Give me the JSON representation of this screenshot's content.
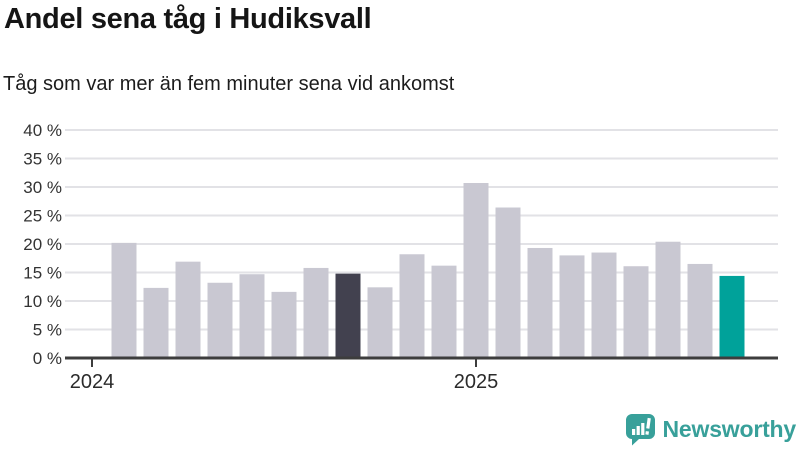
{
  "header": {
    "title": "Andel sena tåg i Hudiksvall",
    "subtitle": "Tåg som var mer än fem minuter sena vid ankomst"
  },
  "footer": {
    "brand": "Newsworthy"
  },
  "chart_data": {
    "type": "bar",
    "title": "Andel sena tåg i Hudiksvall",
    "subtitle": "Tåg som var mer än fem minuter sena vid ankomst",
    "unit": "%",
    "ylim": [
      0,
      40
    ],
    "ytick_step": 5,
    "grid": true,
    "yticks": [
      {
        "value": 0,
        "label": "0 %"
      },
      {
        "value": 5,
        "label": "5 %"
      },
      {
        "value": 10,
        "label": "10 %"
      },
      {
        "value": 15,
        "label": "15 %"
      },
      {
        "value": 20,
        "label": "20 %"
      },
      {
        "value": 25,
        "label": "25 %"
      },
      {
        "value": 30,
        "label": "30 %"
      },
      {
        "value": 35,
        "label": "35 %"
      },
      {
        "value": 40,
        "label": "40 %"
      }
    ],
    "xticks": [
      {
        "month_index": 0,
        "label": "2024"
      },
      {
        "month_index": 12,
        "label": "2025"
      }
    ],
    "bars": [
      {
        "month_index": 1,
        "value": 20.2,
        "role": "default"
      },
      {
        "month_index": 2,
        "value": 12.3,
        "role": "default"
      },
      {
        "month_index": 3,
        "value": 16.9,
        "role": "default"
      },
      {
        "month_index": 4,
        "value": 13.2,
        "role": "default"
      },
      {
        "month_index": 5,
        "value": 14.7,
        "role": "default"
      },
      {
        "month_index": 6,
        "value": 11.6,
        "role": "default"
      },
      {
        "month_index": 7,
        "value": 15.8,
        "role": "default"
      },
      {
        "month_index": 8,
        "value": 14.8,
        "role": "dark"
      },
      {
        "month_index": 9,
        "value": 12.4,
        "role": "default"
      },
      {
        "month_index": 10,
        "value": 18.2,
        "role": "default"
      },
      {
        "month_index": 11,
        "value": 16.2,
        "role": "default"
      },
      {
        "month_index": 12,
        "value": 30.7,
        "role": "default"
      },
      {
        "month_index": 13,
        "value": 26.4,
        "role": "default"
      },
      {
        "month_index": 14,
        "value": 19.3,
        "role": "default"
      },
      {
        "month_index": 15,
        "value": 18.0,
        "role": "default"
      },
      {
        "month_index": 16,
        "value": 18.5,
        "role": "default"
      },
      {
        "month_index": 17,
        "value": 16.1,
        "role": "default"
      },
      {
        "month_index": 18,
        "value": 20.4,
        "role": "default"
      },
      {
        "month_index": 19,
        "value": 16.5,
        "role": "default"
      },
      {
        "month_index": 20,
        "value": 14.4,
        "role": "accent"
      }
    ],
    "colors": {
      "bar_default": "#c9c8d2",
      "bar_dark": "#42414f",
      "bar_accent": "#00a29a",
      "grid": "#e2e2e6",
      "axis": "#3d3d3d",
      "tick_text": "#333333",
      "brand_teal": "#38a09a"
    },
    "legend": null
  }
}
